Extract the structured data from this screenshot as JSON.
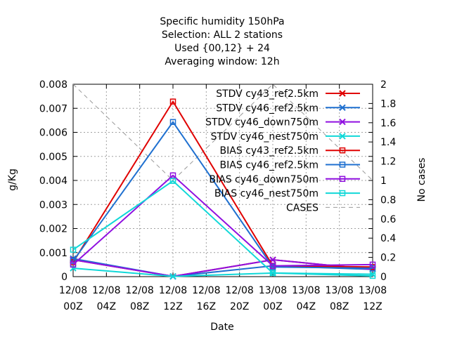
{
  "chart_data": {
    "type": "line",
    "title_lines": [
      "Specific humidity 150hPa",
      "Selection: ALL      2 stations",
      "Used {00,12} + 24",
      "Averaging window: 12h"
    ],
    "xlabel": "Date",
    "ylabel": "g/Kg",
    "y2label": "No cases",
    "x_ticks": [
      {
        "line1": "12/08",
        "line2": "00Z"
      },
      {
        "line1": "12/08",
        "line2": "04Z"
      },
      {
        "line1": "12/08",
        "line2": "08Z"
      },
      {
        "line1": "12/08",
        "line2": "12Z"
      },
      {
        "line1": "12/08",
        "line2": "16Z"
      },
      {
        "line1": "12/08",
        "line2": "20Z"
      },
      {
        "line1": "13/08",
        "line2": "00Z"
      },
      {
        "line1": "13/08",
        "line2": "04Z"
      },
      {
        "line1": "13/08",
        "line2": "08Z"
      },
      {
        "line1": "13/08",
        "line2": "12Z"
      }
    ],
    "x_points": [
      "12/08 00Z",
      "12/08 12Z",
      "13/08 00Z",
      "13/08 12Z"
    ],
    "x_hours": [
      0,
      12,
      24,
      36
    ],
    "x_range_hours": [
      0,
      36
    ],
    "ylim": [
      0,
      0.008
    ],
    "y_ticks": [
      "0",
      "0.001",
      "0.002",
      "0.003",
      "0.004",
      "0.005",
      "0.006",
      "0.007",
      "0.008"
    ],
    "y2lim": [
      0,
      2
    ],
    "y2_ticks": [
      "0",
      "0.2",
      "0.4",
      "0.6",
      "0.8",
      "1",
      "1.2",
      "1.4",
      "1.6",
      "1.8",
      "2"
    ],
    "grid": true,
    "legend_position": "top-right",
    "series": [
      {
        "name": "STDV cy43_ref2.5km",
        "color": "#e00000",
        "marker": "x",
        "axis": "y1",
        "values": [
          0.0007,
          1e-05,
          0.0007,
          0.0003
        ]
      },
      {
        "name": "STDV cy46_ref2.5km",
        "color": "#1f70d0",
        "marker": "x",
        "axis": "y1",
        "values": [
          0.00075,
          1e-05,
          0.00045,
          0.0003
        ]
      },
      {
        "name": "STDV cy46_down750m",
        "color": "#9010e0",
        "marker": "x",
        "axis": "y1",
        "values": [
          0.0007,
          1e-05,
          0.0007,
          0.0003
        ]
      },
      {
        "name": "STDV cy46_nest750m",
        "color": "#10d8d8",
        "marker": "x",
        "axis": "y1",
        "values": [
          0.00035,
          1e-05,
          0.00015,
          0.0001
        ]
      },
      {
        "name": "BIAS cy43_ref2.5km",
        "color": "#e00000",
        "marker": "square",
        "axis": "y1",
        "values": [
          0.0006,
          0.00728,
          0.00045,
          0.0004
        ]
      },
      {
        "name": "BIAS cy46_ref2.5km",
        "color": "#1f70d0",
        "marker": "square",
        "axis": "y1",
        "values": [
          0.00065,
          0.00643,
          0.0004,
          0.00035
        ]
      },
      {
        "name": "BIAS cy46_down750m",
        "color": "#9010e0",
        "marker": "square",
        "axis": "y1",
        "values": [
          0.0005,
          0.00421,
          0.00045,
          0.0005
        ]
      },
      {
        "name": "BIAS cy46_nest750m",
        "color": "#10d8d8",
        "marker": "square",
        "axis": "y1",
        "values": [
          0.00112,
          0.00398,
          0.00015,
          3e-05
        ]
      },
      {
        "name": "CASES",
        "color": "#999999",
        "marker": "none",
        "dash": true,
        "axis": "y2",
        "values": [
          2,
          1,
          2,
          1
        ]
      }
    ]
  }
}
